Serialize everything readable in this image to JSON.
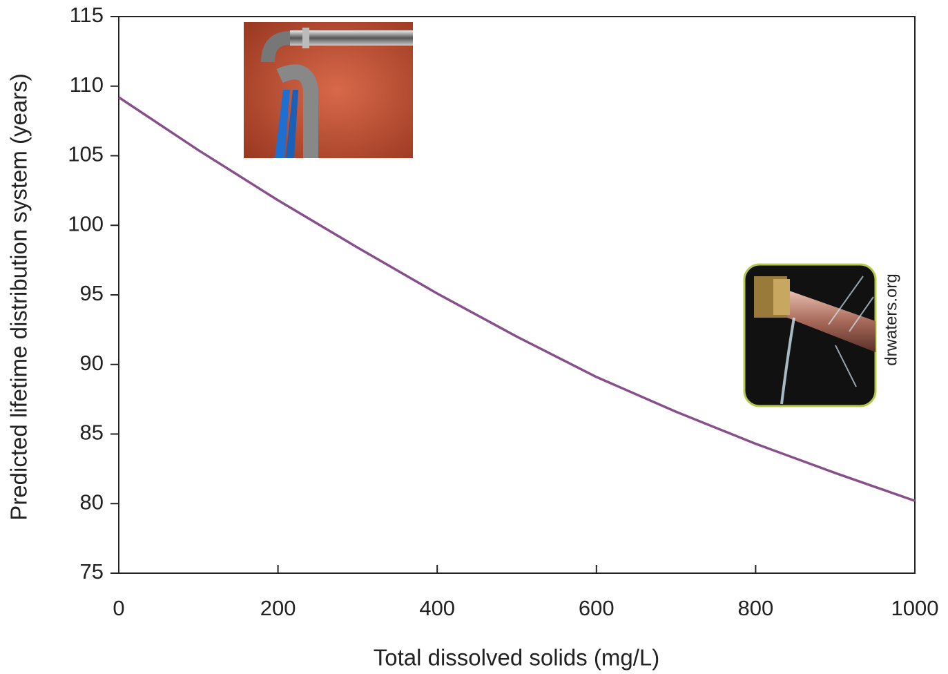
{
  "chart_data": {
    "type": "line",
    "x_label": "Total dissolved solids (mg/L)",
    "y_label": "Predicted lifetime distribution system (years)",
    "watermark": "drwaters.org",
    "x": [
      0,
      100,
      200,
      300,
      400,
      500,
      600,
      700,
      800,
      900,
      1000
    ],
    "series": [
      {
        "color": "#87508a",
        "values": [
          109.2,
          105.4,
          101.8,
          98.4,
          95.1,
          92.0,
          89.1,
          86.6,
          84.3,
          82.2,
          80.2
        ]
      }
    ],
    "xlim": [
      0,
      1000
    ],
    "xticks": [
      0,
      200,
      400,
      600,
      800,
      1000
    ],
    "ylim": [
      75,
      115
    ],
    "yticks": [
      75,
      80,
      85,
      90,
      95,
      100,
      105,
      110,
      115
    ],
    "grid": false
  }
}
